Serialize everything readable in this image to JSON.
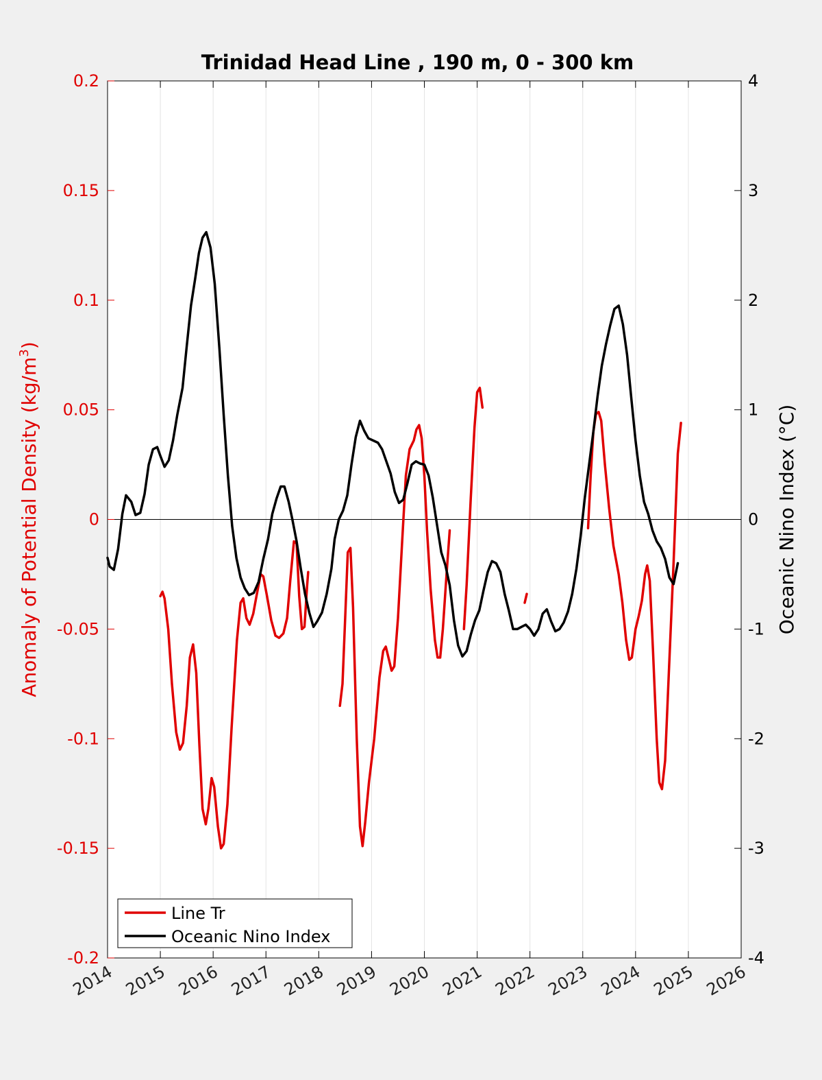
{
  "chart_data": {
    "type": "line",
    "title": "Trinidad Head Line , 190 m, 0 - 300 km",
    "ylabel_left_main": "Anomaly of Potential Density (kg/m",
    "ylabel_left_sup": "3",
    "ylabel_left_end": ")",
    "ylabel_right": "Oceanic Nino Index (°C)",
    "xlim": [
      2014,
      2026
    ],
    "x_ticks": [
      "2014",
      "2015",
      "2016",
      "2017",
      "2018",
      "2019",
      "2020",
      "2021",
      "2022",
      "2023",
      "2024",
      "2025",
      "2026"
    ],
    "ylim_left": [
      -0.2,
      0.2
    ],
    "y_ticks_left": [
      "-0.2",
      "-0.15",
      "-0.1",
      "-0.05",
      "0",
      "0.05",
      "0.1",
      "0.15",
      "0.2"
    ],
    "ylim_right": [
      -4,
      4
    ],
    "y_ticks_right": [
      "-4",
      "-3",
      "-2",
      "-1",
      "0",
      "1",
      "2",
      "3",
      "4"
    ],
    "grid": "vertical",
    "legend_position": "bottom-left",
    "series": [
      {
        "name": "Line Tr",
        "axis": "left",
        "color": "#e00000",
        "segments": [
          [
            [
              2015.0,
              -0.035
            ],
            [
              2015.04,
              -0.033
            ],
            [
              2015.08,
              -0.036
            ],
            [
              2015.15,
              -0.05
            ],
            [
              2015.22,
              -0.075
            ],
            [
              2015.3,
              -0.097
            ],
            [
              2015.37,
              -0.105
            ],
            [
              2015.43,
              -0.102
            ],
            [
              2015.5,
              -0.085
            ],
            [
              2015.56,
              -0.063
            ],
            [
              2015.62,
              -0.057
            ],
            [
              2015.68,
              -0.07
            ],
            [
              2015.74,
              -0.103
            ],
            [
              2015.8,
              -0.132
            ],
            [
              2015.86,
              -0.139
            ],
            [
              2015.91,
              -0.132
            ],
            [
              2015.97,
              -0.118
            ],
            [
              2016.02,
              -0.122
            ],
            [
              2016.09,
              -0.14
            ],
            [
              2016.15,
              -0.15
            ],
            [
              2016.2,
              -0.148
            ],
            [
              2016.27,
              -0.13
            ],
            [
              2016.35,
              -0.095
            ],
            [
              2016.45,
              -0.055
            ],
            [
              2016.52,
              -0.038
            ],
            [
              2016.57,
              -0.036
            ],
            [
              2016.63,
              -0.045
            ],
            [
              2016.69,
              -0.048
            ],
            [
              2016.76,
              -0.043
            ],
            [
              2016.82,
              -0.035
            ],
            [
              2016.9,
              -0.025
            ],
            [
              2016.95,
              -0.026
            ],
            [
              2017.02,
              -0.035
            ],
            [
              2017.1,
              -0.046
            ],
            [
              2017.18,
              -0.053
            ],
            [
              2017.25,
              -0.054
            ],
            [
              2017.33,
              -0.052
            ],
            [
              2017.4,
              -0.045
            ],
            [
              2017.46,
              -0.028
            ],
            [
              2017.53,
              -0.01
            ],
            [
              2017.58,
              -0.011
            ],
            [
              2017.63,
              -0.035
            ],
            [
              2017.68,
              -0.05
            ],
            [
              2017.73,
              -0.049
            ],
            [
              2017.78,
              -0.03
            ],
            [
              2017.8,
              -0.024
            ]
          ],
          [
            [
              2018.4,
              -0.085
            ],
            [
              2018.45,
              -0.075
            ],
            [
              2018.5,
              -0.045
            ],
            [
              2018.55,
              -0.015
            ],
            [
              2018.6,
              -0.013
            ],
            [
              2018.65,
              -0.04
            ],
            [
              2018.72,
              -0.1
            ],
            [
              2018.78,
              -0.14
            ],
            [
              2018.83,
              -0.149
            ],
            [
              2018.88,
              -0.138
            ],
            [
              2018.95,
              -0.12
            ],
            [
              2019.05,
              -0.1
            ],
            [
              2019.15,
              -0.072
            ],
            [
              2019.22,
              -0.06
            ],
            [
              2019.27,
              -0.058
            ],
            [
              2019.32,
              -0.063
            ],
            [
              2019.38,
              -0.069
            ],
            [
              2019.43,
              -0.067
            ],
            [
              2019.5,
              -0.045
            ],
            [
              2019.58,
              -0.01
            ],
            [
              2019.65,
              0.02
            ],
            [
              2019.72,
              0.032
            ],
            [
              2019.8,
              0.036
            ],
            [
              2019.85,
              0.041
            ],
            [
              2019.9,
              0.043
            ],
            [
              2019.95,
              0.037
            ],
            [
              2020.0,
              0.02
            ],
            [
              2020.05,
              -0.005
            ],
            [
              2020.12,
              -0.032
            ],
            [
              2020.2,
              -0.055
            ],
            [
              2020.25,
              -0.063
            ],
            [
              2020.3,
              -0.063
            ],
            [
              2020.35,
              -0.05
            ],
            [
              2020.42,
              -0.025
            ],
            [
              2020.48,
              -0.005
            ]
          ],
          [
            [
              2020.75,
              -0.05
            ],
            [
              2020.8,
              -0.03
            ],
            [
              2020.88,
              0.01
            ],
            [
              2020.95,
              0.042
            ],
            [
              2021.0,
              0.058
            ],
            [
              2021.05,
              0.06
            ],
            [
              2021.1,
              0.051
            ]
          ],
          [
            [
              2021.9,
              -0.038
            ],
            [
              2021.94,
              -0.034
            ]
          ],
          [
            [
              2023.1,
              -0.004
            ],
            [
              2023.15,
              0.02
            ],
            [
              2023.2,
              0.04
            ],
            [
              2023.25,
              0.048
            ],
            [
              2023.3,
              0.049
            ],
            [
              2023.35,
              0.045
            ],
            [
              2023.42,
              0.025
            ],
            [
              2023.5,
              0.005
            ],
            [
              2023.58,
              -0.012
            ],
            [
              2023.68,
              -0.025
            ],
            [
              2023.75,
              -0.038
            ],
            [
              2023.82,
              -0.055
            ],
            [
              2023.88,
              -0.064
            ],
            [
              2023.93,
              -0.063
            ],
            [
              2024.0,
              -0.05
            ],
            [
              2024.06,
              -0.044
            ],
            [
              2024.12,
              -0.037
            ],
            [
              2024.18,
              -0.025
            ],
            [
              2024.22,
              -0.021
            ],
            [
              2024.27,
              -0.028
            ],
            [
              2024.33,
              -0.06
            ],
            [
              2024.4,
              -0.1
            ],
            [
              2024.45,
              -0.12
            ],
            [
              2024.5,
              -0.123
            ],
            [
              2024.56,
              -0.11
            ],
            [
              2024.63,
              -0.07
            ],
            [
              2024.72,
              -0.02
            ],
            [
              2024.8,
              0.03
            ],
            [
              2024.86,
              0.044
            ]
          ]
        ]
      },
      {
        "name": "Oceanic Nino Index",
        "axis": "right",
        "color": "#000000",
        "segments": [
          [
            [
              2014.0,
              -0.35
            ],
            [
              2014.04,
              -0.43
            ],
            [
              2014.12,
              -0.46
            ],
            [
              2014.2,
              -0.27
            ],
            [
              2014.28,
              0.05
            ],
            [
              2014.35,
              0.22
            ],
            [
              2014.45,
              0.16
            ],
            [
              2014.53,
              0.04
            ],
            [
              2014.62,
              0.06
            ],
            [
              2014.7,
              0.23
            ],
            [
              2014.78,
              0.5
            ],
            [
              2014.86,
              0.64
            ],
            [
              2014.94,
              0.66
            ],
            [
              2015.0,
              0.58
            ],
            [
              2015.08,
              0.48
            ],
            [
              2015.16,
              0.54
            ],
            [
              2015.24,
              0.72
            ],
            [
              2015.32,
              0.95
            ],
            [
              2015.42,
              1.2
            ],
            [
              2015.5,
              1.58
            ],
            [
              2015.58,
              1.95
            ],
            [
              2015.66,
              2.2
            ],
            [
              2015.73,
              2.43
            ],
            [
              2015.8,
              2.57
            ],
            [
              2015.87,
              2.62
            ],
            [
              2015.95,
              2.48
            ],
            [
              2016.03,
              2.15
            ],
            [
              2016.12,
              1.55
            ],
            [
              2016.2,
              0.95
            ],
            [
              2016.28,
              0.4
            ],
            [
              2016.36,
              -0.06
            ],
            [
              2016.44,
              -0.35
            ],
            [
              2016.52,
              -0.53
            ],
            [
              2016.6,
              -0.63
            ],
            [
              2016.68,
              -0.69
            ],
            [
              2016.77,
              -0.67
            ],
            [
              2016.86,
              -0.57
            ],
            [
              2016.95,
              -0.36
            ],
            [
              2017.04,
              -0.18
            ],
            [
              2017.12,
              0.05
            ],
            [
              2017.2,
              0.19
            ],
            [
              2017.28,
              0.3
            ],
            [
              2017.35,
              0.3
            ],
            [
              2017.43,
              0.16
            ],
            [
              2017.5,
              0.0
            ],
            [
              2017.58,
              -0.2
            ],
            [
              2017.66,
              -0.45
            ],
            [
              2017.74,
              -0.68
            ],
            [
              2017.82,
              -0.85
            ],
            [
              2017.9,
              -0.98
            ],
            [
              2017.97,
              -0.93
            ],
            [
              2018.06,
              -0.85
            ],
            [
              2018.15,
              -0.68
            ],
            [
              2018.24,
              -0.45
            ],
            [
              2018.3,
              -0.18
            ],
            [
              2018.38,
              0.0
            ],
            [
              2018.46,
              0.08
            ],
            [
              2018.54,
              0.22
            ],
            [
              2018.62,
              0.5
            ],
            [
              2018.7,
              0.75
            ],
            [
              2018.78,
              0.9
            ],
            [
              2018.86,
              0.81
            ],
            [
              2018.94,
              0.74
            ],
            [
              2019.03,
              0.72
            ],
            [
              2019.12,
              0.7
            ],
            [
              2019.2,
              0.64
            ],
            [
              2019.28,
              0.53
            ],
            [
              2019.36,
              0.42
            ],
            [
              2019.44,
              0.25
            ],
            [
              2019.52,
              0.15
            ],
            [
              2019.6,
              0.18
            ],
            [
              2019.68,
              0.33
            ],
            [
              2019.76,
              0.5
            ],
            [
              2019.84,
              0.53
            ],
            [
              2019.92,
              0.51
            ],
            [
              2020.0,
              0.5
            ],
            [
              2020.08,
              0.4
            ],
            [
              2020.16,
              0.2
            ],
            [
              2020.24,
              -0.05
            ],
            [
              2020.32,
              -0.3
            ],
            [
              2020.4,
              -0.42
            ],
            [
              2020.48,
              -0.6
            ],
            [
              2020.56,
              -0.92
            ],
            [
              2020.64,
              -1.15
            ],
            [
              2020.72,
              -1.25
            ],
            [
              2020.8,
              -1.2
            ],
            [
              2020.88,
              -1.05
            ],
            [
              2020.96,
              -0.92
            ],
            [
              2021.04,
              -0.83
            ],
            [
              2021.12,
              -0.65
            ],
            [
              2021.2,
              -0.48
            ],
            [
              2021.28,
              -0.38
            ],
            [
              2021.36,
              -0.4
            ],
            [
              2021.44,
              -0.48
            ],
            [
              2021.52,
              -0.68
            ],
            [
              2021.6,
              -0.83
            ],
            [
              2021.68,
              -1.0
            ],
            [
              2021.76,
              -1.0
            ],
            [
              2021.84,
              -0.98
            ],
            [
              2021.92,
              -0.96
            ],
            [
              2022.0,
              -1.0
            ],
            [
              2022.08,
              -1.06
            ],
            [
              2022.16,
              -1.0
            ],
            [
              2022.24,
              -0.86
            ],
            [
              2022.32,
              -0.82
            ],
            [
              2022.4,
              -0.93
            ],
            [
              2022.48,
              -1.02
            ],
            [
              2022.56,
              -1.0
            ],
            [
              2022.64,
              -0.94
            ],
            [
              2022.72,
              -0.84
            ],
            [
              2022.8,
              -0.68
            ],
            [
              2022.88,
              -0.45
            ],
            [
              2022.96,
              -0.15
            ],
            [
              2023.04,
              0.2
            ],
            [
              2023.12,
              0.5
            ],
            [
              2023.2,
              0.8
            ],
            [
              2023.28,
              1.12
            ],
            [
              2023.36,
              1.4
            ],
            [
              2023.44,
              1.6
            ],
            [
              2023.52,
              1.77
            ],
            [
              2023.6,
              1.92
            ],
            [
              2023.68,
              1.95
            ],
            [
              2023.76,
              1.78
            ],
            [
              2023.84,
              1.5
            ],
            [
              2023.92,
              1.1
            ],
            [
              2024.0,
              0.72
            ],
            [
              2024.08,
              0.4
            ],
            [
              2024.16,
              0.16
            ],
            [
              2024.24,
              0.05
            ],
            [
              2024.32,
              -0.1
            ],
            [
              2024.4,
              -0.2
            ],
            [
              2024.48,
              -0.26
            ],
            [
              2024.56,
              -0.36
            ],
            [
              2024.64,
              -0.53
            ],
            [
              2024.72,
              -0.59
            ],
            [
              2024.8,
              -0.4
            ]
          ]
        ]
      }
    ]
  }
}
